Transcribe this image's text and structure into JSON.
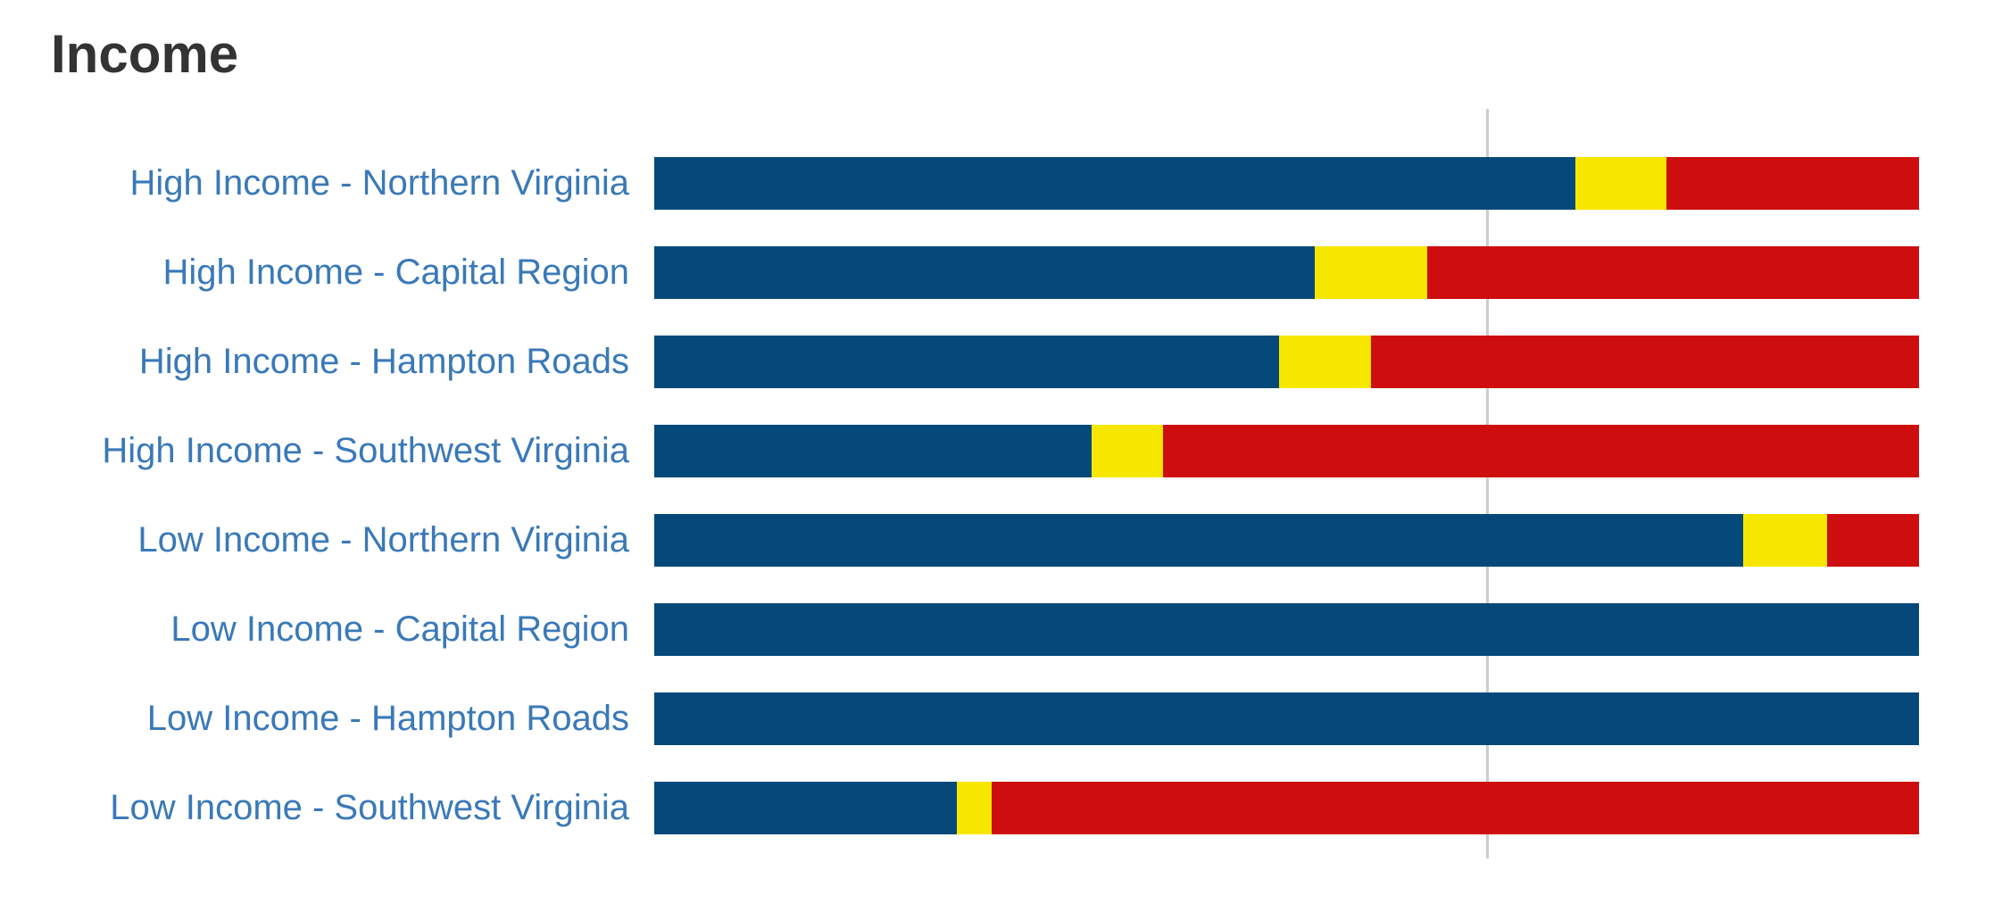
{
  "page": {
    "background": "#ffffff"
  },
  "header": {
    "title": "Income",
    "title_color": "#333333"
  },
  "chart_data": {
    "type": "bar",
    "orientation": "horizontal",
    "stacked": true,
    "stacked_to_100_percent": true,
    "title": "Income",
    "legend": "none",
    "axis_tick_labels": "none",
    "grid": "single vertical reference line",
    "xlim": [
      0,
      100
    ],
    "category_label_color": "#3A79B8",
    "reference_line": {
      "position_pct": 65.8,
      "color": "#cccccc"
    },
    "categories": [
      "High Income - Northern Virginia",
      "High Income - Capital Region",
      "High Income - Hampton Roads",
      "High Income - Southwest Virginia",
      "Low Income - Northern Virginia",
      "Low Income - Capital Region",
      "Low Income - Hampton Roads",
      "Low Income - Southwest Virginia"
    ],
    "series": [
      {
        "name": "blue-segment",
        "color": "#05497B",
        "values": [
          72.8,
          52.2,
          49.4,
          34.6,
          86.1,
          100,
          100,
          23.9
        ]
      },
      {
        "name": "yellow-segment",
        "color": "#F7E700",
        "values": [
          7.2,
          8.9,
          7.3,
          5.6,
          6.6,
          0,
          0,
          2.8
        ]
      },
      {
        "name": "red-segment",
        "color": "#CE0E0E",
        "values": [
          20.0,
          38.9,
          43.3,
          59.8,
          7.3,
          0,
          0,
          73.3
        ]
      }
    ]
  }
}
